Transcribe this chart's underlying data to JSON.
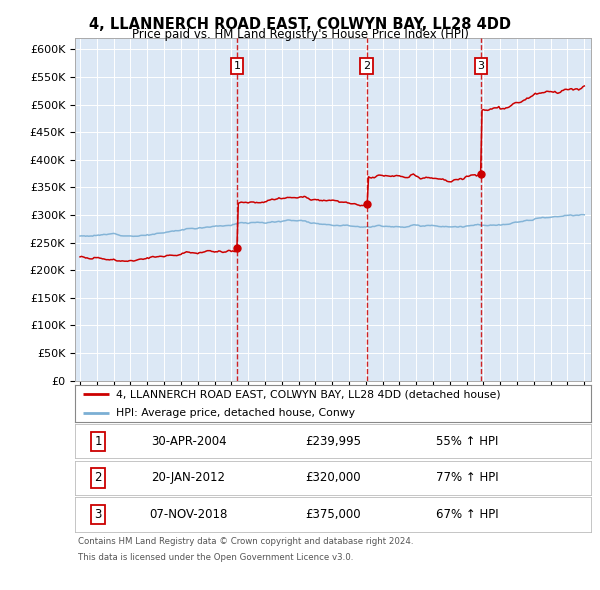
{
  "title": "4, LLANNERCH ROAD EAST, COLWYN BAY, LL28 4DD",
  "subtitle": "Price paid vs. HM Land Registry's House Price Index (HPI)",
  "plot_bg_color": "#dce8f5",
  "ylim": [
    0,
    620000
  ],
  "yticks": [
    0,
    50000,
    100000,
    150000,
    200000,
    250000,
    300000,
    350000,
    400000,
    450000,
    500000,
    550000,
    600000
  ],
  "sale_markers": [
    {
      "label": "1",
      "year": 2004.33,
      "price": 239995,
      "date": "30-APR-2004",
      "pct": "55% ↑ HPI"
    },
    {
      "label": "2",
      "year": 2012.05,
      "price": 320000,
      "date": "20-JAN-2012",
      "pct": "77% ↑ HPI"
    },
    {
      "label": "3",
      "year": 2018.85,
      "price": 375000,
      "date": "07-NOV-2018",
      "pct": "67% ↑ HPI"
    }
  ],
  "legend_property": "4, LLANNERCH ROAD EAST, COLWYN BAY, LL28 4DD (detached house)",
  "legend_hpi": "HPI: Average price, detached house, Conwy",
  "footer1": "Contains HM Land Registry data © Crown copyright and database right 2024.",
  "footer2": "This data is licensed under the Open Government Licence v3.0.",
  "red_color": "#cc0000",
  "blue_color": "#7bafd4",
  "xmin": 1995,
  "xmax": 2025
}
